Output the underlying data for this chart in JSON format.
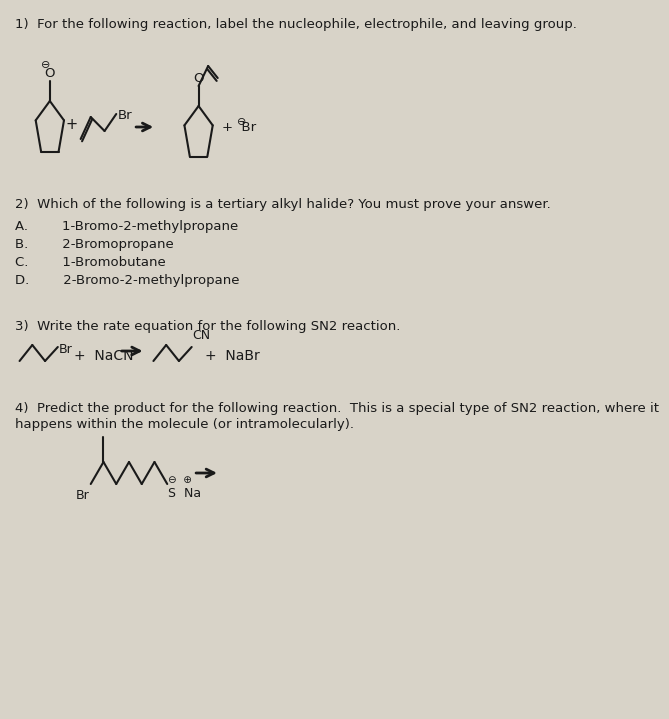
{
  "bg_color": "#d8d3c8",
  "text_color": "#1a1a1a",
  "fs": 9.5,
  "lw": 1.5,
  "q1_text": "1)  For the following reaction, label the nucleophile, electrophile, and leaving group.",
  "q2_header": "2)  Which of the following is a tertiary alkyl halide? You must prove your answer.",
  "q2_A": "A.        1-Bromo-2-methylpropane",
  "q2_B": "B.        2-Bromopropane",
  "q2_C": "C.        1-Bromobutane",
  "q2_D": "D.        2-Bromo-2-methylpropane",
  "q3_text": "3)  Write the rate equation for the following SN2 reaction.",
  "q4_line1": "4)  Predict the product for the following reaction.  This is a special type of SN2 reaction, where it",
  "q4_line2": "happens within the molecule (or intramolecularly)."
}
